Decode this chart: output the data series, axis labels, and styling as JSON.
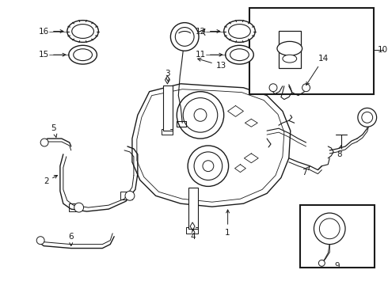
{
  "bg_color": "#ffffff",
  "line_color": "#1a1a1a",
  "fig_width": 4.9,
  "fig_height": 3.6,
  "dpi": 100,
  "font_size": 7.5,
  "lw": 0.8
}
